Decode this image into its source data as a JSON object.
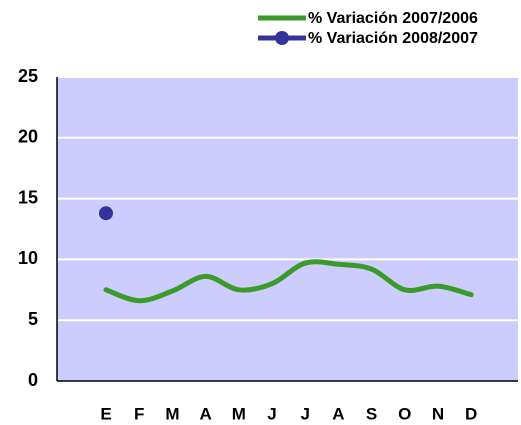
{
  "chart_data": {
    "type": "line",
    "categories": [
      "E",
      "F",
      "M",
      "A",
      "M",
      "J",
      "J",
      "A",
      "S",
      "O",
      "N",
      "D"
    ],
    "series": [
      {
        "name": "% Variación 2007/2006",
        "color": "#3a9a2a",
        "values": [
          7.5,
          6.6,
          7.4,
          8.6,
          7.5,
          8.0,
          9.7,
          9.6,
          9.2,
          7.5,
          7.8,
          7.1
        ]
      },
      {
        "name": "% Variación 2008/2007",
        "color": "#333399",
        "values": [
          13.8,
          null,
          null,
          null,
          null,
          null,
          null,
          null,
          null,
          null,
          null,
          null
        ]
      }
    ],
    "ylim": [
      0,
      25
    ],
    "yticks": [
      0,
      5,
      10,
      15,
      20,
      25
    ],
    "grid": true,
    "legend": "top-right"
  }
}
